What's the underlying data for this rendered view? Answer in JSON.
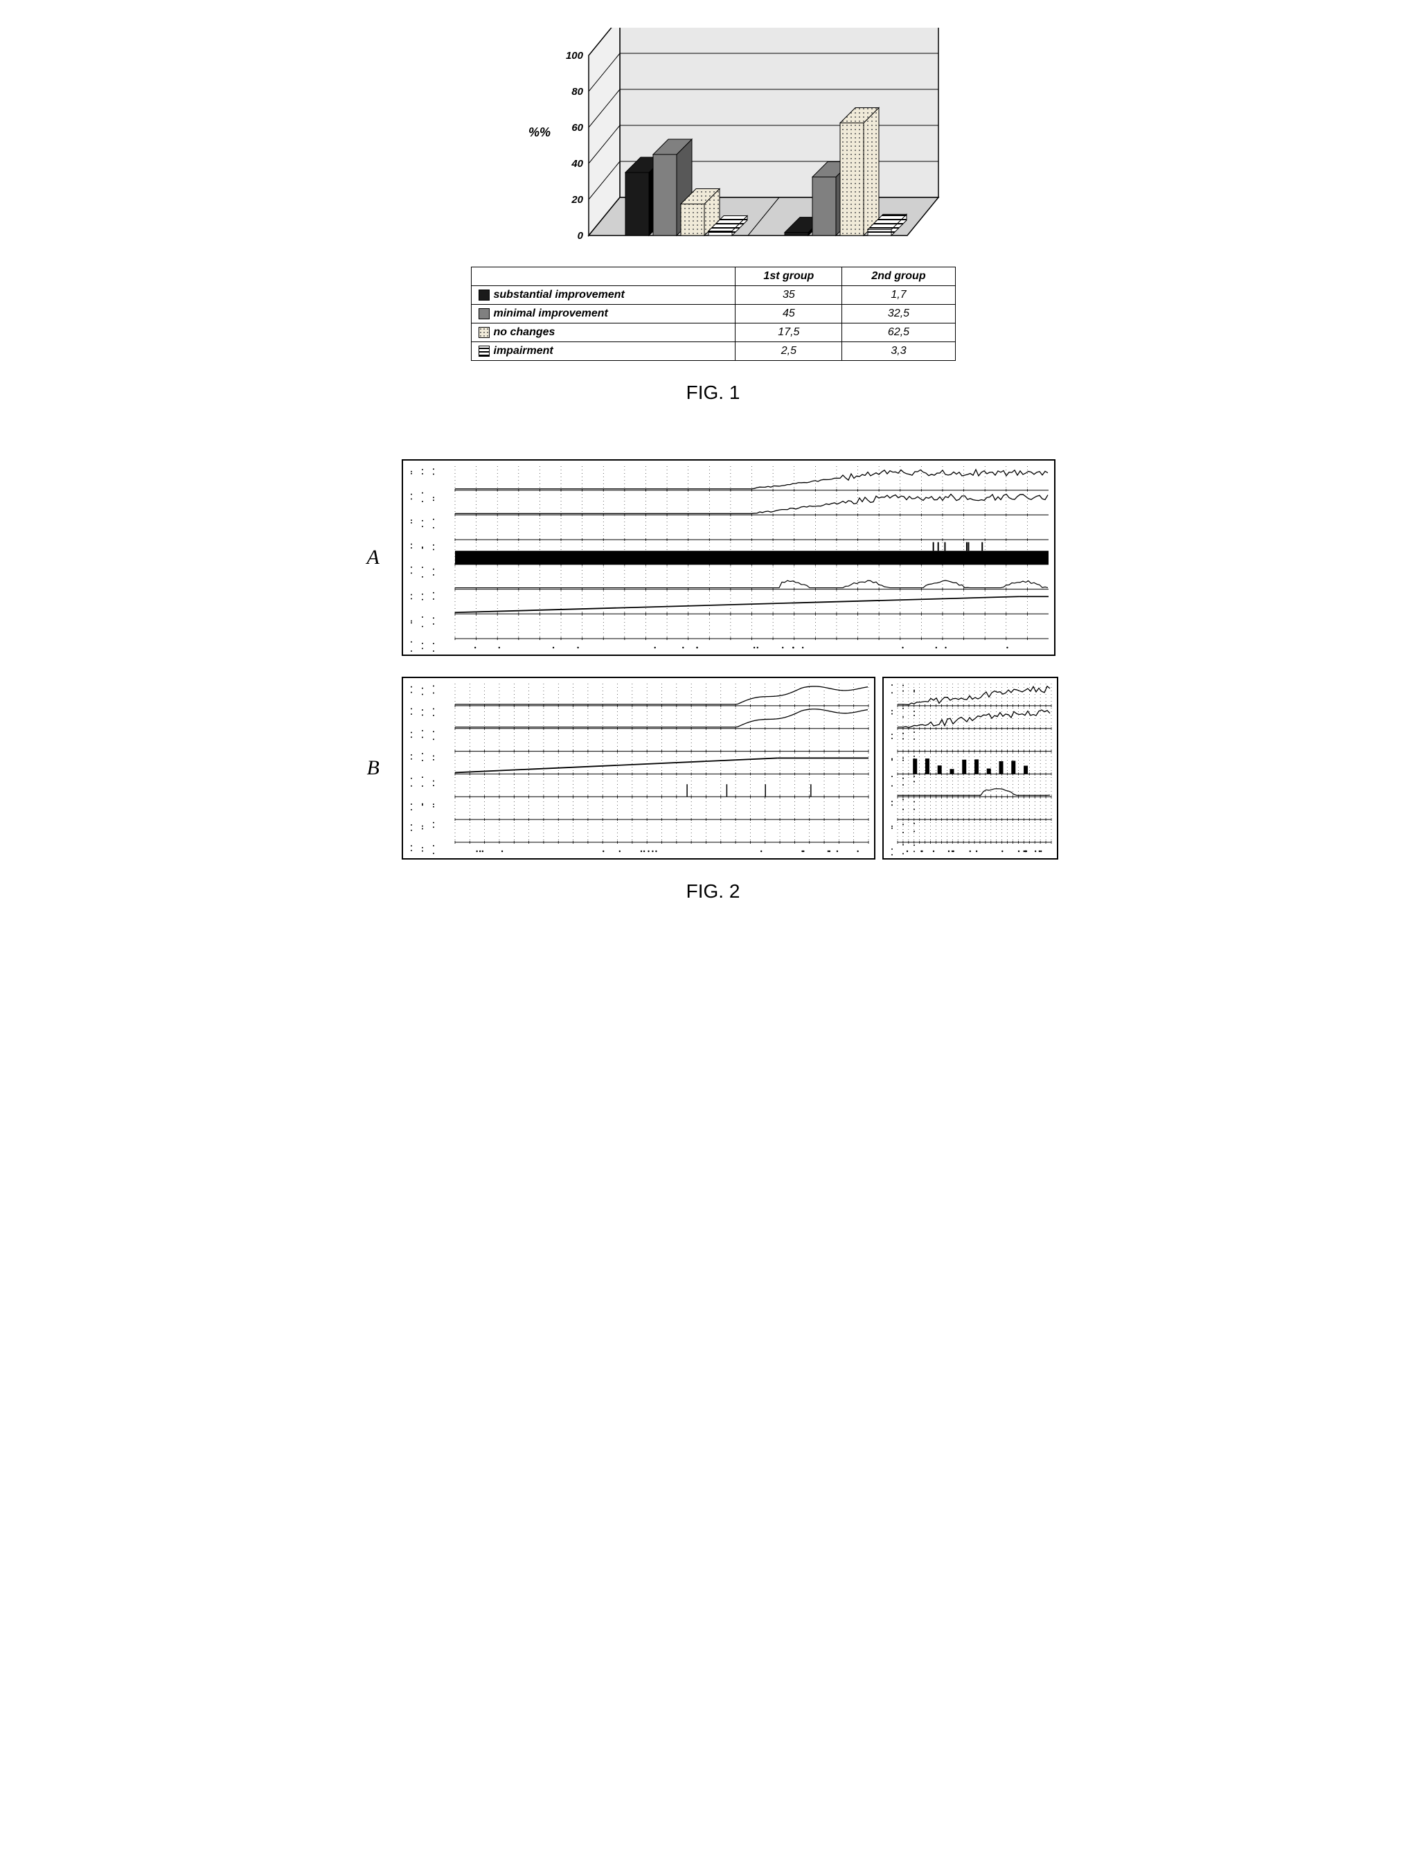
{
  "fig1": {
    "axis_label": "%%",
    "categories": [
      "1st group",
      "2nd group"
    ],
    "series": [
      {
        "label": "substantial improvement",
        "fill": "#1a1a1a",
        "pattern": "solid",
        "values": [
          35,
          1.7
        ],
        "display": [
          "35",
          "1,7"
        ]
      },
      {
        "label": "minimal improvement",
        "fill": "#808080",
        "pattern": "solid",
        "values": [
          45,
          32.5
        ],
        "display": [
          "45",
          "32,5"
        ]
      },
      {
        "label": "no changes",
        "fill": "#e8e0d0",
        "pattern": "dotted",
        "values": [
          17.5,
          62.5
        ],
        "display": [
          "17,5",
          "62,5"
        ]
      },
      {
        "label": "impairment",
        "fill": "#ffffff",
        "pattern": "hstripe",
        "values": [
          2.5,
          3.3
        ],
        "display": [
          "2,5",
          "3,3"
        ]
      }
    ],
    "ylim": [
      0,
      100
    ],
    "ytick_step": 20,
    "back_wall": "#e8e8e8",
    "floor": "#d0d0d0",
    "grid_color": "#000000",
    "caption": "FIG. 1"
  },
  "fig2": {
    "caption": "FIG. 2",
    "panelA": {
      "label": "A"
    },
    "panelB": {
      "label": "B"
    }
  }
}
